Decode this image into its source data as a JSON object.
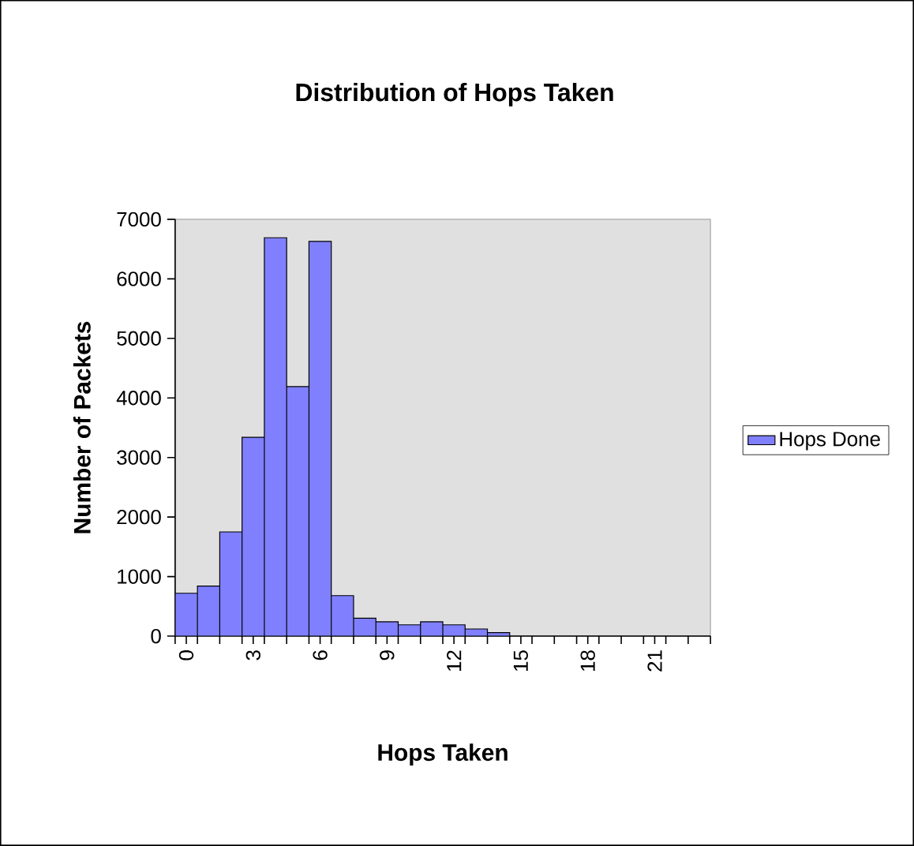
{
  "chart_data": {
    "type": "bar",
    "title": "Distribution of Hops Taken",
    "xlabel": "Hops Taken",
    "ylabel": "Number of Packets",
    "categories": [
      "0",
      null,
      null,
      "3",
      null,
      null,
      "6",
      null,
      null,
      "9",
      null,
      null,
      "12",
      null,
      null,
      "15",
      null,
      null,
      "18",
      null,
      null,
      "21",
      null,
      null
    ],
    "series": [
      {
        "name": "Hops Done",
        "color": "#8080ff",
        "values": [
          720,
          840,
          1750,
          3340,
          6690,
          4190,
          6630,
          680,
          300,
          240,
          190,
          240,
          190,
          120,
          60,
          null,
          null,
          null,
          null,
          null,
          null,
          null,
          null,
          null
        ]
      }
    ],
    "ylim": [
      0,
      7000
    ],
    "yticks": [
      0,
      1000,
      2000,
      3000,
      4000,
      5000,
      6000,
      7000
    ],
    "grid": false,
    "legend": "right"
  }
}
